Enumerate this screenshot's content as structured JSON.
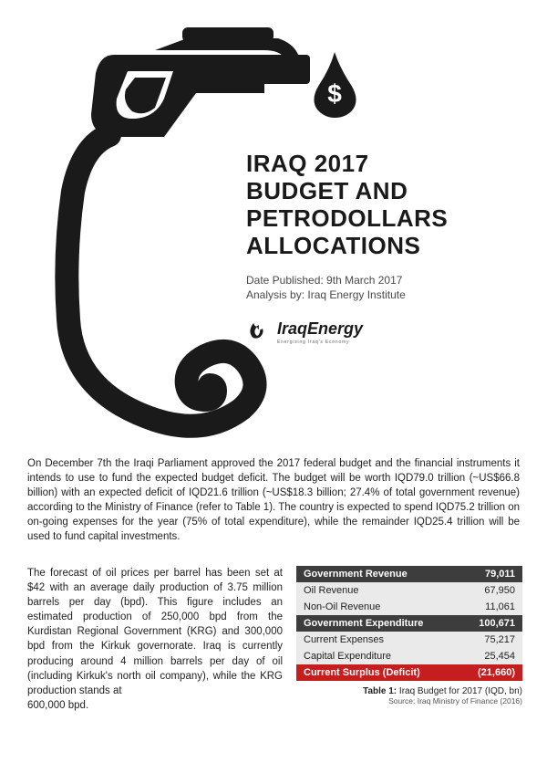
{
  "title_line1": "IRAQ 2017",
  "title_line2": "BUDGET AND",
  "title_line3": "PETRODOLLARS",
  "title_line4": "ALLOCATIONS",
  "date_published_label": "Date Published: 9th March 2017",
  "analysis_by_label": "Analysis by: Iraq Energy Institute",
  "logo_text": "IraqEnergy",
  "logo_tagline": "Energising Iraq's Economy",
  "para1": "On December 7th the Iraqi Parliament approved the 2017 federal budget and the financial instruments it intends to use to fund the expected budget deficit.  The budget will be worth IQD79.0 trillion (~US$66.8 billion) with an expected deficit of IQD21.6 trillion (~US$18.3 billion; 27.4% of total government revenue) according to the Ministry of Finance (refer to Table 1).  The country is expected to spend IQD75.2 trillion on on-going expenses for the year (75% of total expenditure), while the remainder IQD25.4 trillion will be used to fund capital investments.",
  "para2": "The forecast of oil prices per barrel has been set at $42 with an average daily production of 3.75 million barrels per day (bpd).  This figure includes an estimated production of 250,000 bpd from the Kurdistan Regional Government (KRG) and 300,000 bpd from the Kirkuk governorate.  Iraq is currently producing around 4 million barrels per day of oil (including Kirkuk's north oil company), while the KRG production stands at",
  "para2_tail": "600,000 bpd.",
  "table": {
    "rows": [
      {
        "type": "header",
        "label": "Government Revenue",
        "value": "79,011"
      },
      {
        "type": "data",
        "label": "Oil Revenue",
        "value": "67,950"
      },
      {
        "type": "data",
        "label": "Non-Oil Revenue",
        "value": "11,061"
      },
      {
        "type": "header",
        "label": "Government Expenditure",
        "value": "100,671"
      },
      {
        "type": "data",
        "label": "Current Expenses",
        "value": "75,217"
      },
      {
        "type": "data",
        "label": "Capital Expenditure",
        "value": "25,454"
      },
      {
        "type": "deficit",
        "label": "Current Surplus (Deficit)",
        "value": "(21,660)"
      }
    ],
    "caption_bold": "Table 1:",
    "caption_text": " Iraq Budget for 2017 (IQD, bn)",
    "source": "Source: Iraq Ministry of Finance (2016)",
    "header_bg": "#3d3d3d",
    "data_bg": "#eaeaea",
    "deficit_bg": "#c41e1e"
  },
  "dollar_symbol": "$"
}
